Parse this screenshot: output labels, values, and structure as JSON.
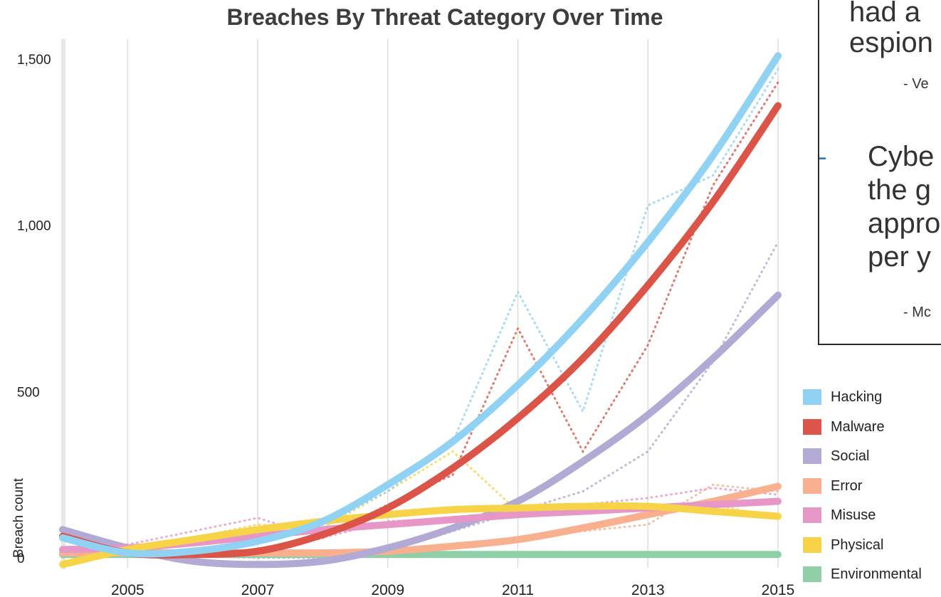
{
  "chart_data": {
    "type": "line",
    "title": "Breaches By Threat Category Over Time",
    "xlabel": "",
    "ylabel": "Breach count",
    "x": [
      2004,
      2005,
      2006,
      2007,
      2008,
      2009,
      2010,
      2011,
      2012,
      2013,
      2014,
      2015
    ],
    "x_ticks": [
      "2005",
      "2007",
      "2009",
      "2011",
      "2013",
      "2015"
    ],
    "y_ticks": [
      "0",
      "500",
      "1,000",
      "1,500"
    ],
    "xlim": [
      2004,
      2015
    ],
    "ylim": [
      -30,
      1560
    ],
    "grid": "vertical",
    "legend_position": "bottom-right",
    "series": [
      {
        "name": "Hacking",
        "color": "#8fd2f3",
        "values": [
          60,
          15,
          20,
          50,
          110,
          220,
          350,
          520,
          720,
          950,
          1210,
          1510
        ],
        "actual": [
          65,
          20,
          20,
          55,
          100,
          200,
          350,
          800,
          440,
          1060,
          1150,
          1470
        ]
      },
      {
        "name": "Malware",
        "color": "#dc5447",
        "values": [
          65,
          15,
          10,
          20,
          70,
          150,
          270,
          420,
          600,
          820,
          1070,
          1360
        ],
        "actual": [
          70,
          20,
          10,
          15,
          60,
          160,
          250,
          690,
          320,
          640,
          1120,
          1430
        ]
      },
      {
        "name": "Social",
        "color": "#b2a9d4",
        "values": [
          85,
          30,
          -10,
          -20,
          -10,
          30,
          90,
          170,
          290,
          430,
          600,
          790
        ],
        "actual": [
          90,
          30,
          5,
          0,
          0,
          20,
          80,
          140,
          200,
          320,
          590,
          950
        ]
      },
      {
        "name": "Error",
        "color": "#f8b08f",
        "values": [
          15,
          15,
          15,
          15,
          15,
          20,
          35,
          55,
          90,
          130,
          170,
          215
        ],
        "actual": [
          10,
          15,
          15,
          15,
          10,
          20,
          40,
          60,
          80,
          100,
          220,
          200
        ]
      },
      {
        "name": "Misuse",
        "color": "#e797c7",
        "values": [
          25,
          30,
          45,
          65,
          85,
          100,
          115,
          130,
          140,
          150,
          160,
          170
        ],
        "actual": [
          20,
          40,
          80,
          120,
          60,
          110,
          120,
          140,
          160,
          180,
          210,
          190
        ]
      },
      {
        "name": "Physical",
        "color": "#f7d347",
        "values": [
          -20,
          25,
          55,
          85,
          110,
          130,
          145,
          150,
          155,
          155,
          140,
          125
        ],
        "actual": [
          0,
          30,
          60,
          100,
          90,
          200,
          320,
          140,
          150,
          160,
          160,
          120
        ]
      },
      {
        "name": "Environmental",
        "color": "#8fcfa7",
        "values": [
          10,
          10,
          10,
          10,
          10,
          10,
          10,
          10,
          10,
          10,
          10,
          10
        ],
        "actual": [
          10,
          10,
          10,
          10,
          10,
          10,
          10,
          10,
          10,
          10,
          10,
          10
        ]
      }
    ]
  },
  "quote": {
    "lines": [
      "had a",
      "espion",
      "Cybe",
      "the g",
      "appro",
      "per y"
    ],
    "source1": "- Ve",
    "source2": "- Mc"
  }
}
